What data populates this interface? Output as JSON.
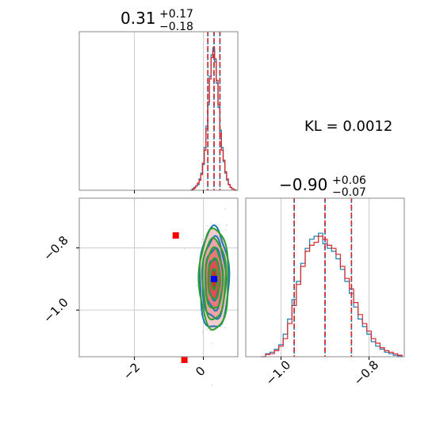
{
  "chart_data": {
    "type": "corner",
    "colors": {
      "blue": "#1f77b4",
      "red": "#d62728",
      "green": "#2ca02c",
      "grid": "#cccccc",
      "frame": "#888888",
      "marker_red": "#ff0000",
      "marker_blue": "#0000ff"
    },
    "top_panel": {
      "title_main": "0.31",
      "title_sup": "+0.17",
      "title_sub": "−0.18",
      "xlim": [
        -3.6,
        1.0
      ],
      "vlines": [
        0.13,
        0.31,
        0.48
      ],
      "gridlines_x": [
        -2,
        0
      ],
      "hist_x": [
        -0.35,
        -0.3,
        -0.25,
        -0.2,
        -0.15,
        -0.1,
        -0.05,
        0.0,
        0.05,
        0.1,
        0.15,
        0.2,
        0.25,
        0.3,
        0.35,
        0.4,
        0.45,
        0.5,
        0.55,
        0.6,
        0.65,
        0.7,
        0.75,
        0.8,
        0.85,
        0.9,
        0.95
      ],
      "hist_blue": [
        0.0,
        0.01,
        0.02,
        0.03,
        0.04,
        0.08,
        0.12,
        0.18,
        0.3,
        0.45,
        0.6,
        0.8,
        0.95,
        1.0,
        0.9,
        0.75,
        0.58,
        0.42,
        0.3,
        0.2,
        0.12,
        0.07,
        0.04,
        0.02,
        0.01,
        0.005,
        0.0
      ],
      "hist_red": [
        0.0,
        0.005,
        0.015,
        0.03,
        0.05,
        0.07,
        0.11,
        0.19,
        0.28,
        0.43,
        0.62,
        0.78,
        0.93,
        0.98,
        0.92,
        0.77,
        0.6,
        0.4,
        0.28,
        0.21,
        0.13,
        0.08,
        0.04,
        0.02,
        0.01,
        0.005,
        0.0
      ]
    },
    "right_panel": {
      "title_main": "−0.90",
      "title_sup": "+0.06",
      "title_sub": "−0.07",
      "xlim": [
        -1.08,
        -0.72
      ],
      "vlines": [
        -0.97,
        -0.9,
        -0.84
      ],
      "gridlines_x": [
        -1.0,
        -0.8
      ],
      "xticks": [
        -1.0,
        -0.8
      ],
      "xtick_labels": [
        "−1.0",
        "−0.8"
      ],
      "hist_x": [
        -1.04,
        -1.03,
        -1.02,
        -1.01,
        -1.0,
        -0.99,
        -0.98,
        -0.97,
        -0.96,
        -0.95,
        -0.94,
        -0.93,
        -0.92,
        -0.91,
        -0.9,
        -0.89,
        -0.88,
        -0.87,
        -0.86,
        -0.85,
        -0.84,
        -0.83,
        -0.82,
        -0.81,
        -0.8,
        -0.79,
        -0.78,
        -0.77,
        -0.76,
        -0.75,
        -0.74,
        -0.73
      ],
      "hist_blue": [
        0.0,
        0.02,
        0.03,
        0.05,
        0.08,
        0.15,
        0.25,
        0.38,
        0.5,
        0.62,
        0.72,
        0.78,
        0.8,
        0.82,
        0.75,
        0.72,
        0.7,
        0.65,
        0.58,
        0.5,
        0.42,
        0.33,
        0.25,
        0.2,
        0.15,
        0.1,
        0.07,
        0.05,
        0.03,
        0.02,
        0.01,
        0.005
      ],
      "hist_red": [
        0.0,
        0.015,
        0.02,
        0.04,
        0.07,
        0.12,
        0.22,
        0.34,
        0.48,
        0.6,
        0.7,
        0.74,
        0.76,
        0.8,
        0.78,
        0.74,
        0.72,
        0.68,
        0.6,
        0.52,
        0.45,
        0.36,
        0.28,
        0.22,
        0.17,
        0.12,
        0.09,
        0.06,
        0.04,
        0.03,
        0.02,
        0.01
      ]
    },
    "joint_panel": {
      "xlim": [
        -3.6,
        1.0
      ],
      "ylim": [
        -1.15,
        -0.64
      ],
      "gridlines_x": [
        -2,
        0
      ],
      "gridlines_y": [
        -0.8,
        -1.0
      ],
      "xticks": [
        -2,
        0
      ],
      "xtick_labels": [
        "−2",
        "0"
      ],
      "yticks": [
        -0.8,
        -1.0
      ],
      "ytick_labels": [
        "−0.8",
        "−1.0"
      ],
      "center": [
        0.31,
        -0.9
      ],
      "sigma": [
        0.17,
        0.065
      ],
      "contour_levels": [
        0.5,
        1.0,
        1.5,
        2.0,
        2.5
      ],
      "red_squares": [
        [
          -0.8,
          -0.76
        ],
        [
          -0.55,
          -1.16
        ]
      ],
      "blue_square": [
        0.31,
        -0.9
      ]
    },
    "kl_text": "KL = 0.0012"
  }
}
